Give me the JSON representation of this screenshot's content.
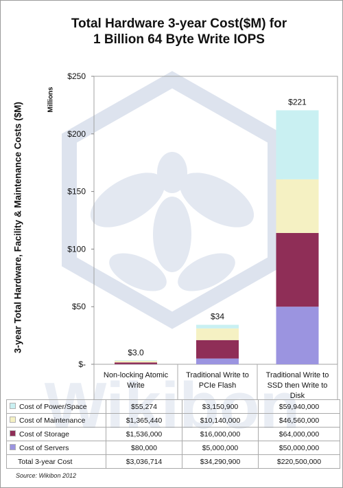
{
  "title_line1": "Total Hardware 3-year Cost($M)  for",
  "title_line2": "1 Billion 64 Byte Write IOPS",
  "source": "Source: Wikibon 2012",
  "watermark_text": "Wikibon",
  "chart_data": {
    "type": "bar",
    "stacked": true,
    "title": "Total Hardware 3-year Cost($M)  for 1 Billion 64 Byte Write IOPS",
    "ylabel": "3-year Total Hardware, Facility & Maintenance Costs ($M)",
    "yunit": "Millions",
    "ylim": [
      0,
      250
    ],
    "yticks": [
      0,
      50,
      100,
      150,
      200,
      250
    ],
    "ytick_labels": [
      "$-",
      "$50",
      "$100",
      "$150",
      "$200",
      "$250"
    ],
    "grid": false,
    "categories": [
      "Non-locking Atomic Write",
      "Traditional Write to PCIe Flash",
      "Traditional Write to SSD then Write to Disk"
    ],
    "category_lines": [
      [
        "Non-locking Atomic",
        "Write"
      ],
      [
        "Traditional Write to",
        "PCIe Flash"
      ],
      [
        "Traditional Write to",
        "SSD then Write to",
        "Disk"
      ]
    ],
    "series": [
      {
        "name": "Cost of Servers",
        "color": "#9b94e0",
        "values": [
          0.08,
          5.0,
          50.0
        ],
        "labels": [
          "$80,000",
          "$5,000,000",
          "$50,000,000"
        ]
      },
      {
        "name": "Cost of Storage",
        "color": "#8f2e57",
        "values": [
          1.536,
          16.0,
          64.0
        ],
        "labels": [
          "$1,536,000",
          "$16,000,000",
          "$64,000,000"
        ]
      },
      {
        "name": "Cost of Maintenance",
        "color": "#f5f1c3",
        "values": [
          1.36544,
          10.14,
          46.56
        ],
        "labels": [
          "$1,365,440",
          "$10,140,000",
          "$46,560,000"
        ]
      },
      {
        "name": "Cost of Power/Space",
        "color": "#c9f0f2",
        "values": [
          0.055274,
          3.1509,
          59.94
        ],
        "labels": [
          "$55,274",
          "$3,150,900",
          "$59,940,000"
        ]
      }
    ],
    "totals": {
      "name": "Total 3-year Cost",
      "labels": [
        "$3,036,714",
        "$34,290,900",
        "$220,500,000"
      ]
    },
    "data_labels": [
      "$3.0",
      "$34",
      "$221"
    ]
  }
}
